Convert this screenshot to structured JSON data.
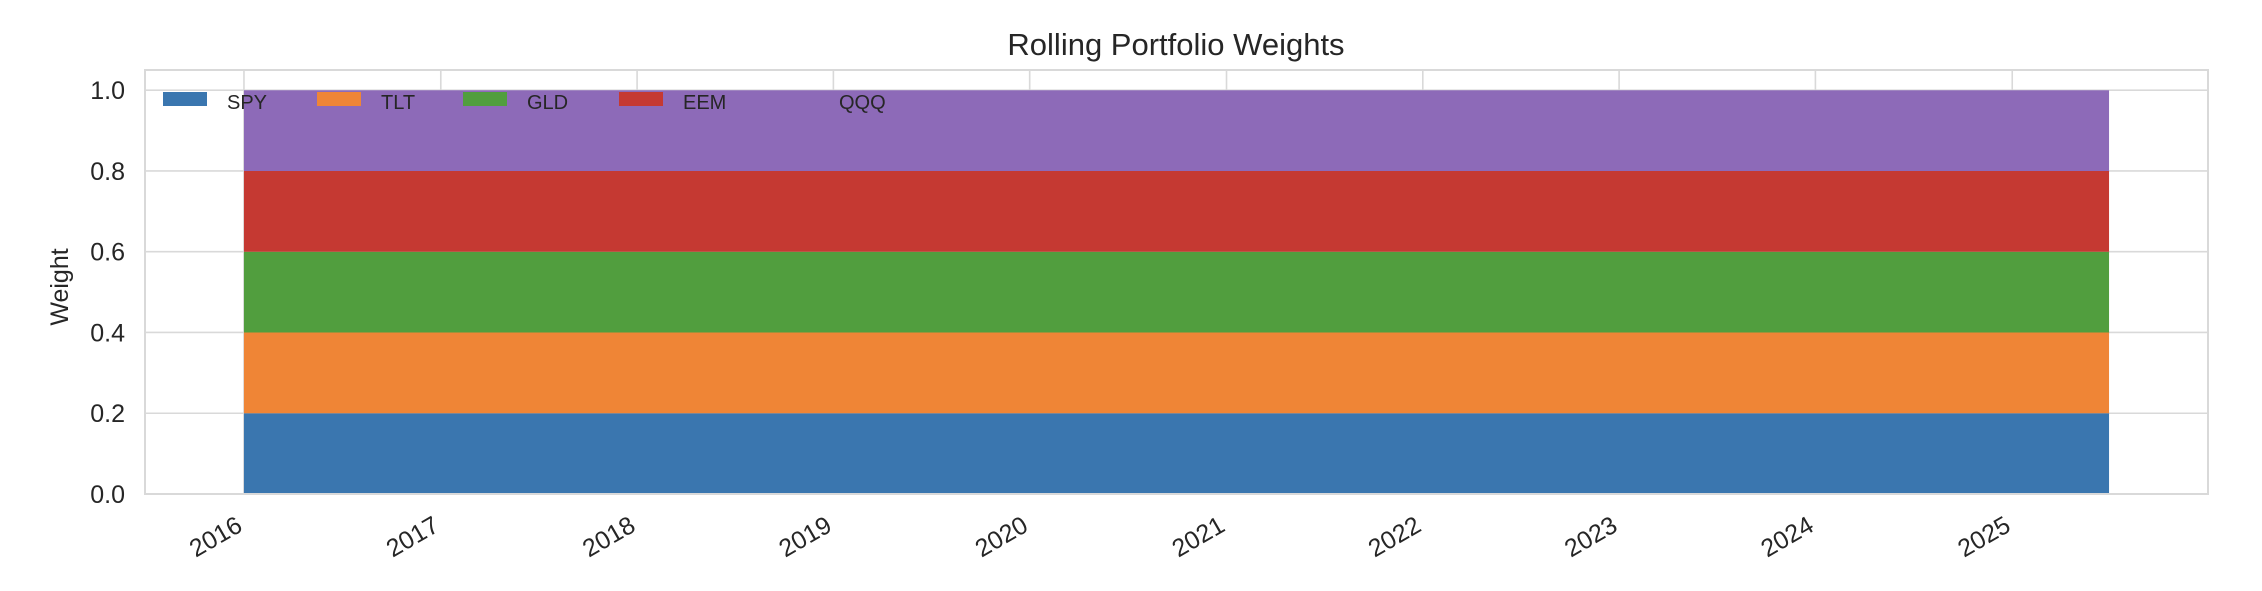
{
  "chart_data": {
    "type": "area",
    "stacked": true,
    "title": "Rolling Portfolio Weights",
    "xlabel": "",
    "ylabel": "Weight",
    "x": [
      "2016-01-01",
      "2025-06-30"
    ],
    "xlim": [
      "2015-07-01",
      "2025-12-31"
    ],
    "xticks": [
      "2016",
      "2017",
      "2018",
      "2019",
      "2020",
      "2021",
      "2022",
      "2023",
      "2024",
      "2025"
    ],
    "ylim": [
      0,
      1.05
    ],
    "yticks": [
      "0.0",
      "0.2",
      "0.4",
      "0.6",
      "0.8",
      "1.0"
    ],
    "grid": true,
    "legend_position": "top-left",
    "series": [
      {
        "name": "SPY",
        "values": [
          0.2,
          0.2
        ],
        "color": "#3a76af"
      },
      {
        "name": "TLT",
        "values": [
          0.2,
          0.2
        ],
        "color": "#ef8536"
      },
      {
        "name": "GLD",
        "values": [
          0.2,
          0.2
        ],
        "color": "#519e3e"
      },
      {
        "name": "EEM",
        "values": [
          0.2,
          0.2
        ],
        "color": "#c53932"
      },
      {
        "name": "QQQ",
        "values": [
          0.2,
          0.2
        ],
        "color": "#8d6ab8"
      }
    ]
  }
}
